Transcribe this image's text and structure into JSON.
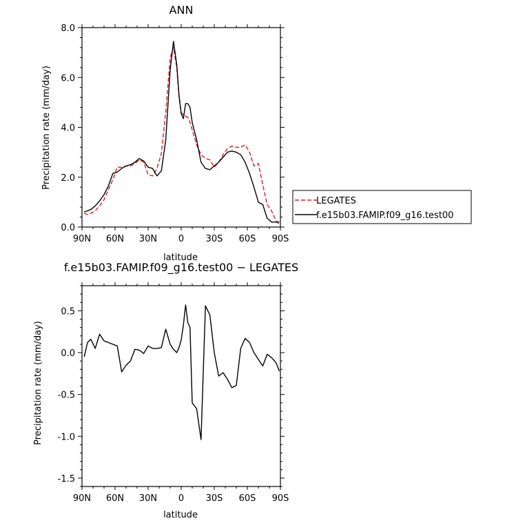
{
  "chart_data": [
    {
      "type": "line",
      "title": "ANN",
      "xlabel": "latitude",
      "ylabel": "Precipitation rate (mm/day)",
      "xlim": [
        90,
        -90
      ],
      "ylim": [
        0,
        8
      ],
      "grid": false,
      "xtick_values": [
        90,
        60,
        30,
        0,
        -30,
        -60,
        -90
      ],
      "xtick_labels": [
        "90N",
        "60N",
        "30N",
        "0",
        "30S",
        "60S",
        "90S"
      ],
      "ytick_values": [
        0,
        2,
        4,
        6,
        8
      ],
      "ytick_labels": [
        "0.0",
        "2.0",
        "4.0",
        "6.0",
        "8.0"
      ],
      "legend_position": "right",
      "series": [
        {
          "name": "LEGATES",
          "color": "#e8161a",
          "dash": "dashed",
          "x": [
            88,
            85,
            82,
            78,
            74,
            70,
            66,
            62,
            58,
            54,
            50,
            46,
            42,
            38,
            34,
            30,
            26,
            22,
            18,
            14,
            10,
            7,
            4,
            2,
            0,
            -2,
            -4,
            -6,
            -8,
            -10,
            -14,
            -18,
            -22,
            -26,
            -30,
            -34,
            -38,
            -42,
            -46,
            -50,
            -54,
            -58,
            -62,
            -66,
            -70,
            -74,
            -78,
            -82,
            -86,
            -89
          ],
          "y": [
            0.55,
            0.5,
            0.55,
            0.65,
            0.85,
            1.1,
            1.5,
            1.9,
            2.4,
            2.4,
            2.45,
            2.45,
            2.55,
            2.7,
            2.6,
            2.1,
            2.05,
            2.35,
            2.95,
            4.6,
            6.8,
            7.2,
            6.4,
            5.2,
            4.6,
            4.5,
            4.45,
            4.4,
            4.2,
            3.9,
            3.3,
            2.9,
            2.75,
            2.7,
            2.4,
            2.6,
            2.9,
            3.15,
            3.25,
            3.2,
            3.2,
            3.3,
            3.0,
            2.45,
            2.55,
            1.7,
            0.9,
            0.65,
            0.25,
            0.1
          ]
        },
        {
          "name": "f.e15b03.FAMIP.f09_g16.test00",
          "color": "#000000",
          "dash": "solid",
          "x": [
            88,
            85,
            82,
            78,
            74,
            70,
            66,
            62,
            58,
            54,
            50,
            46,
            42,
            38,
            34,
            30,
            26,
            22,
            18,
            14,
            10,
            7,
            4,
            2,
            0,
            -2,
            -4,
            -6,
            -8,
            -10,
            -14,
            -18,
            -22,
            -26,
            -30,
            -34,
            -38,
            -42,
            -46,
            -50,
            -54,
            -58,
            -62,
            -66,
            -70,
            -74,
            -78,
            -82,
            -86,
            -89
          ],
          "y": [
            0.6,
            0.65,
            0.7,
            0.85,
            1.05,
            1.3,
            1.65,
            2.15,
            2.2,
            2.35,
            2.45,
            2.5,
            2.6,
            2.75,
            2.65,
            2.4,
            2.35,
            2.05,
            2.25,
            3.5,
            6.3,
            7.45,
            6.5,
            5.3,
            4.55,
            4.35,
            4.95,
            4.95,
            4.8,
            4.2,
            3.5,
            2.6,
            2.35,
            2.3,
            2.45,
            2.6,
            2.8,
            3.0,
            3.05,
            3.0,
            2.9,
            2.6,
            2.15,
            1.6,
            1.0,
            0.9,
            0.35,
            0.2,
            0.2,
            0.2
          ]
        }
      ]
    },
    {
      "type": "line",
      "title": "f.e15b03.FAMIP.f09_g16.test00 − LEGATES",
      "xlabel": "latitude",
      "ylabel": "Precipitation rate (mm/day)",
      "xlim": [
        90,
        -90
      ],
      "ylim": [
        -1.6,
        0.8
      ],
      "grid": false,
      "xtick_values": [
        90,
        60,
        30,
        0,
        -30,
        -60,
        -90
      ],
      "xtick_labels": [
        "90N",
        "60N",
        "30N",
        "0",
        "30S",
        "60S",
        "90S"
      ],
      "ytick_values": [
        -1.5,
        -1.0,
        -0.5,
        0.0,
        0.5
      ],
      "ytick_labels": [
        "-1.5",
        "-1.0",
        "-0.5",
        "0.0",
        "0.5"
      ],
      "series": [
        {
          "color": "#000000",
          "dash": "solid",
          "x": [
            88,
            85,
            82,
            78,
            74,
            70,
            66,
            62,
            58,
            54,
            50,
            46,
            42,
            38,
            34,
            30,
            26,
            22,
            18,
            14,
            10,
            7,
            4,
            2,
            0,
            -2,
            -4,
            -6,
            -8,
            -10,
            -14,
            -18,
            -22,
            -26,
            -30,
            -34,
            -38,
            -42,
            -46,
            -50,
            -54,
            -58,
            -62,
            -66,
            -70,
            -74,
            -78,
            -82,
            -86,
            -89
          ],
          "y": [
            -0.05,
            0.12,
            0.16,
            0.05,
            0.22,
            0.14,
            0.12,
            0.1,
            0.08,
            -0.23,
            -0.15,
            -0.1,
            0.04,
            0.03,
            -0.01,
            0.08,
            0.05,
            0.05,
            0.06,
            0.28,
            0.1,
            0.04,
            0.0,
            0.06,
            0.15,
            0.33,
            0.57,
            0.36,
            0.3,
            -0.6,
            -0.67,
            -1.04,
            0.56,
            0.45,
            0.0,
            -0.28,
            -0.24,
            -0.32,
            -0.42,
            -0.39,
            0.05,
            0.17,
            0.12,
            0.0,
            -0.08,
            -0.16,
            -0.02,
            -0.06,
            -0.12,
            -0.22
          ]
        }
      ]
    }
  ],
  "legend": {
    "entries": [
      "LEGATES",
      "f.e15b03.FAMIP.f09_g16.test00"
    ]
  }
}
